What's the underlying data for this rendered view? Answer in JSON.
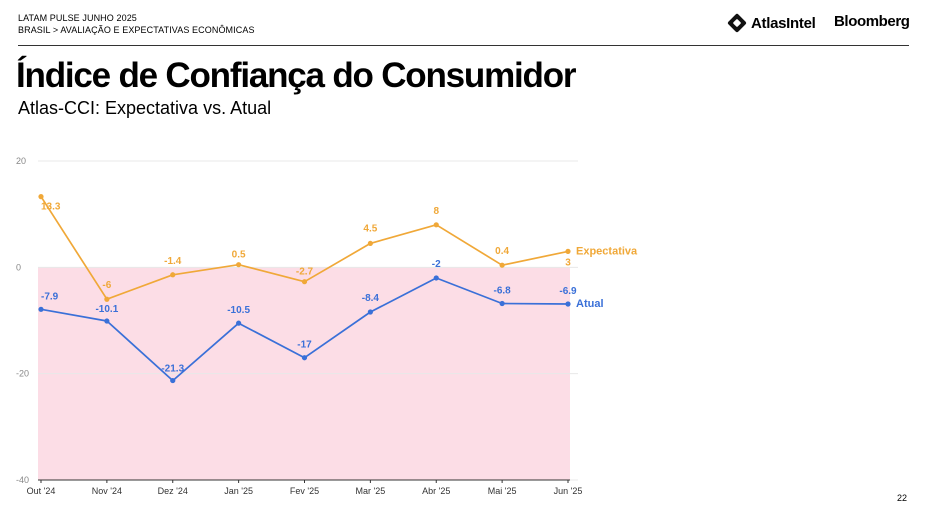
{
  "header": {
    "line1": "LATAM PULSE JUNHO 2025",
    "line2": "BRASIL > AVALIAÇÃO E EXPECTATIVAS ECONÔMICAS",
    "brand1": "AtlasIntel",
    "brand2": "Bloomberg"
  },
  "title": "Índice de Confiança do Consumidor",
  "subtitle": "Atlas-CCI: Expectativa vs. Atual",
  "page_number": "22",
  "colors": {
    "expectativa": "#f0a838",
    "atual": "#3a70d8",
    "negative_region": "#fcdde6",
    "grid": "#e8e8e8",
    "axis_text": "#888888"
  },
  "chart_data": {
    "type": "line",
    "x": [
      "Out '24",
      "Nov '24",
      "Dez '24",
      "Jan '25",
      "Fev '25",
      "Mar '25",
      "Abr '25",
      "Mai '25",
      "Jun '25"
    ],
    "ylim": [
      -40,
      20
    ],
    "yticks": [
      "20",
      "0",
      "-20",
      "-40"
    ],
    "grid": true,
    "negative_shading": true,
    "series": [
      {
        "name": "Expectativa",
        "values": [
          13.3,
          -6,
          -1.4,
          0.5,
          -2.7,
          4.5,
          8,
          0.4,
          3
        ],
        "labels": [
          "13.3",
          "-6",
          "-1.4",
          "0.5",
          "-2.7",
          "4.5",
          "8",
          "0.4",
          "3"
        ]
      },
      {
        "name": "Atual",
        "values": [
          -7.9,
          -10.1,
          -21.3,
          -10.5,
          -17,
          -8.4,
          -2,
          -6.8,
          -6.9
        ],
        "labels": [
          "-7.9",
          "-10.1",
          "-21.3",
          "-10.5",
          "-17",
          "-8.4",
          "-2",
          "-6.8",
          "-6.9"
        ]
      }
    ]
  }
}
